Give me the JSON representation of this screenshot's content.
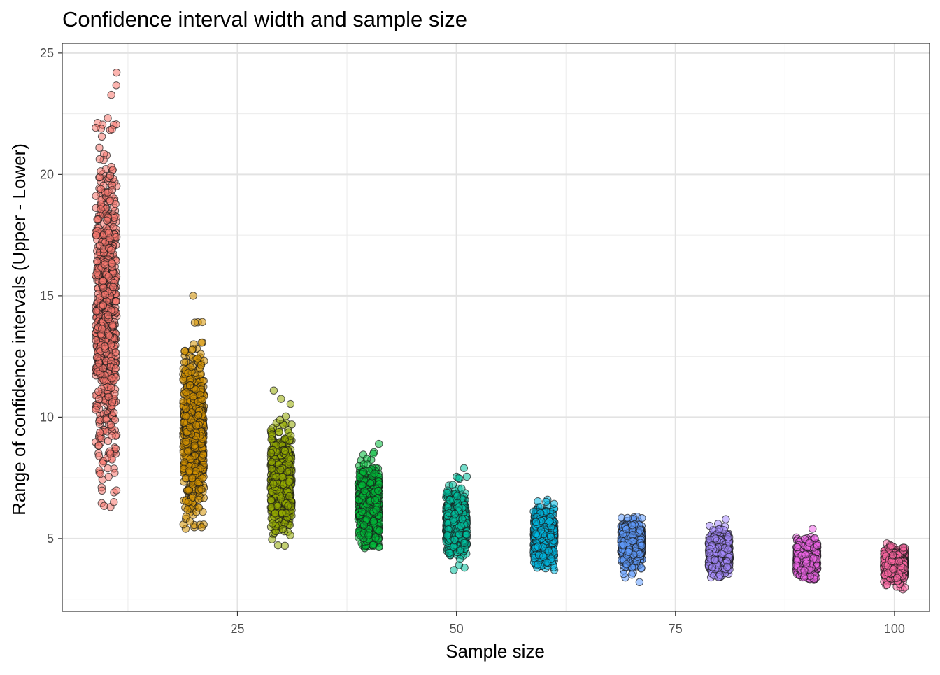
{
  "chart_data": {
    "type": "scatter",
    "title": "Confidence interval width and sample size",
    "xlabel": "Sample size",
    "ylabel": "Range of confidence intervals (Upper - Lower)",
    "xlim": [
      5,
      104
    ],
    "ylim": [
      2.0,
      25.4
    ],
    "x_ticks": [
      25,
      50,
      75,
      100
    ],
    "y_ticks": [
      5,
      10,
      15,
      20,
      25
    ],
    "grid": true,
    "legend": "none",
    "jitter_width": 1.2,
    "series": [
      {
        "x": 10,
        "color": "#F8766D",
        "center": 14.4,
        "sd": 3.2,
        "min": 6.3,
        "max": 24.2
      },
      {
        "x": 20,
        "color": "#D39200",
        "center": 9.4,
        "sd": 1.5,
        "min": 5.4,
        "max": 15.0
      },
      {
        "x": 30,
        "color": "#93AA00",
        "center": 7.5,
        "sd": 0.95,
        "min": 4.7,
        "max": 11.1
      },
      {
        "x": 40,
        "color": "#00BA38",
        "center": 6.4,
        "sd": 0.75,
        "min": 4.6,
        "max": 8.9
      },
      {
        "x": 50,
        "color": "#00C19F",
        "center": 5.6,
        "sd": 0.6,
        "min": 3.7,
        "max": 7.9
      },
      {
        "x": 60,
        "color": "#00B9E3",
        "center": 5.1,
        "sd": 0.5,
        "min": 3.7,
        "max": 6.6
      },
      {
        "x": 70,
        "color": "#619CFF",
        "center": 4.8,
        "sd": 0.4,
        "min": 3.2,
        "max": 5.9
      },
      {
        "x": 80,
        "color": "#A58AFF",
        "center": 4.4,
        "sd": 0.37,
        "min": 3.4,
        "max": 5.8
      },
      {
        "x": 90,
        "color": "#F066EA",
        "center": 4.15,
        "sd": 0.33,
        "min": 3.3,
        "max": 5.4
      },
      {
        "x": 100,
        "color": "#FF67A4",
        "center": 3.95,
        "sd": 0.3,
        "min": 2.9,
        "max": 4.8
      }
    ],
    "point_count_per_group": 700
  }
}
